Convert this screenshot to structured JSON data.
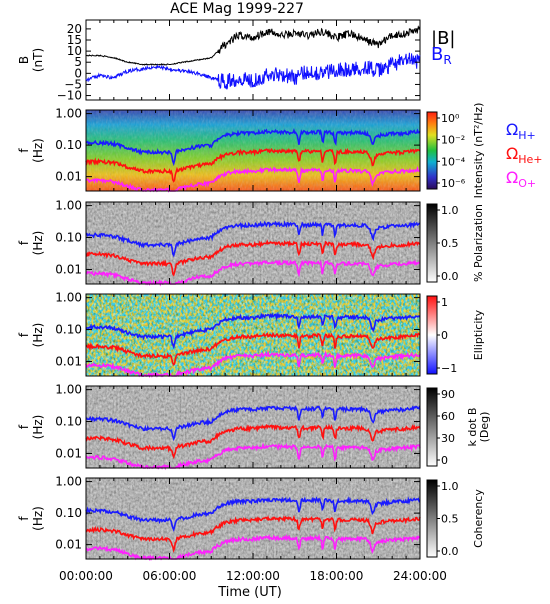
{
  "title": "ACE Mag 1999-227",
  "x_axis": {
    "label": "Time (UT)",
    "ticks": [
      "00:00:00",
      "06:00:00",
      "12:00:00",
      "18:00:00",
      "24:00:00"
    ],
    "range_hours": [
      0,
      24
    ]
  },
  "colors": {
    "B_total": "#000000",
    "B_R": "#1010ff",
    "H_plus": "#1a1aff",
    "He_plus": "#ff1010",
    "O_plus": "#ff20ff"
  },
  "chart_data": [
    {
      "type": "line",
      "panel": "magnetic-field",
      "ylabel": [
        "B",
        "(nT)"
      ],
      "ylim": [
        -12,
        24
      ],
      "yticks": [
        -10,
        -5,
        0,
        5,
        10,
        15,
        20
      ],
      "series": [
        {
          "name": "|B|",
          "color": "#000000",
          "x": [
            0,
            1,
            2,
            3,
            4,
            5,
            6,
            7,
            8,
            9,
            9.5,
            10,
            11,
            12,
            13,
            14,
            15,
            16,
            17,
            18,
            19,
            20,
            21,
            22,
            23,
            24
          ],
          "y": [
            8,
            8,
            7,
            5,
            4,
            4,
            4,
            5,
            6,
            7,
            10,
            13,
            17,
            16,
            19,
            17,
            18,
            17,
            19,
            16,
            18,
            15,
            13,
            17,
            18,
            20
          ]
        },
        {
          "name": "B_R",
          "label_main": "B",
          "label_sub": "R",
          "color": "#1010ff",
          "x": [
            0,
            1,
            2,
            3,
            4,
            5,
            6,
            7,
            8,
            9,
            10,
            11,
            12,
            13,
            14,
            15,
            16,
            17,
            18,
            19,
            20,
            21,
            22,
            23,
            24
          ],
          "y": [
            -3,
            -1,
            -2,
            1,
            2,
            3,
            2,
            1,
            0,
            -2,
            -4,
            -2,
            -3,
            -1,
            0,
            -2,
            1,
            0,
            2,
            1,
            3,
            1,
            4,
            6,
            5
          ]
        }
      ]
    },
    {
      "type": "heatmap",
      "panel": "intensity",
      "ylabel": [
        "f",
        "(Hz)"
      ],
      "yticks": [
        "1.00",
        "0.10",
        "0.01"
      ],
      "colorbar": {
        "label": "Intensity (nT²/Hz)",
        "ticks": [
          "10⁰",
          "10⁻²",
          "10⁻⁴",
          "10⁻⁶"
        ]
      },
      "gyrofrequency_labels": [
        {
          "main": "Ω",
          "sub": "H+",
          "color": "#1a1aff"
        },
        {
          "main": "Ω",
          "sub": "He+",
          "color": "#ff1010"
        },
        {
          "main": "Ω",
          "sub": "O+",
          "color": "#ff20ff"
        }
      ]
    },
    {
      "type": "heatmap",
      "panel": "polarization",
      "ylabel": [
        "f",
        "(Hz)"
      ],
      "yticks": [
        "1.00",
        "0.10",
        "0.01"
      ],
      "colorbar": {
        "label": "% Polarization",
        "ticks": [
          "1.0",
          "0.5",
          "0.0"
        ]
      }
    },
    {
      "type": "heatmap",
      "panel": "ellipticity",
      "ylabel": [
        "f",
        "(Hz)"
      ],
      "yticks": [
        "1.00",
        "0.10",
        "0.01"
      ],
      "colorbar": {
        "label": "Ellipticity",
        "ticks": [
          "1",
          "0",
          "−1"
        ]
      }
    },
    {
      "type": "heatmap",
      "panel": "k-dot-b",
      "ylabel": [
        "f",
        "(Hz)"
      ],
      "yticks": [
        "1.00",
        "0.10",
        "0.01"
      ],
      "colorbar": {
        "label": [
          "k dot B",
          "(Deg)"
        ],
        "ticks": [
          "90",
          "60",
          "30",
          "0"
        ]
      }
    },
    {
      "type": "heatmap",
      "panel": "coherency",
      "ylabel": [
        "f",
        "(Hz)"
      ],
      "yticks": [
        "1.00",
        "0.10",
        "0.01"
      ],
      "colorbar": {
        "label": "Coherency",
        "ticks": [
          "1.0",
          "0.5",
          "0.0"
        ]
      }
    }
  ],
  "gyrofrequency": {
    "x": [
      0,
      1,
      2,
      3,
      4,
      5,
      6,
      7,
      8,
      9,
      9.5,
      10,
      11,
      12,
      13,
      14,
      15,
      16,
      17,
      18,
      19,
      20,
      21,
      22,
      23,
      24
    ],
    "H_plus_hz": [
      0.12,
      0.12,
      0.11,
      0.08,
      0.06,
      0.06,
      0.06,
      0.07,
      0.09,
      0.1,
      0.15,
      0.2,
      0.24,
      0.24,
      0.27,
      0.26,
      0.26,
      0.25,
      0.27,
      0.24,
      0.25,
      0.24,
      0.2,
      0.23,
      0.24,
      0.27
    ]
  }
}
